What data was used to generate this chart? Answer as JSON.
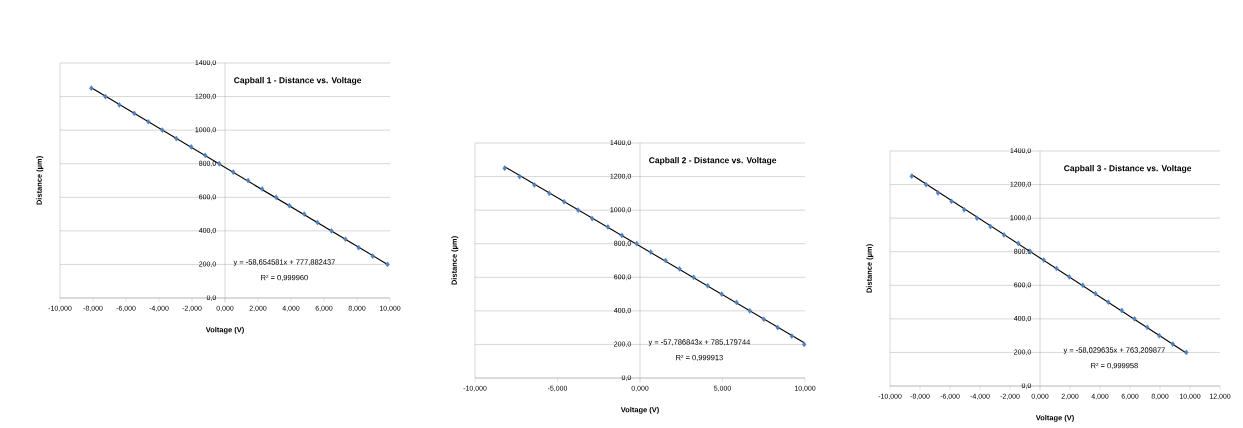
{
  "chart_data": [
    {
      "type": "scatter",
      "title": "Capball 1 - Distance vs. Voltage",
      "xlabel": "Voltage (V)",
      "ylabel": "Distance (µm)",
      "xlim": [
        -10,
        10
      ],
      "ylim": [
        0,
        1400
      ],
      "xticks": [
        {
          "value": -10,
          "label": "-10,000"
        },
        {
          "value": -8,
          "label": "-8,000"
        },
        {
          "value": -6,
          "label": "-6,000"
        },
        {
          "value": -4,
          "label": "-4,000"
        },
        {
          "value": -2,
          "label": "-2,000"
        },
        {
          "value": 0,
          "label": "0,000"
        },
        {
          "value": 2,
          "label": "2,000"
        },
        {
          "value": 4,
          "label": "4,000"
        },
        {
          "value": 6,
          "label": "6,000"
        },
        {
          "value": 8,
          "label": "8,000"
        },
        {
          "value": 10,
          "label": "10,000"
        }
      ],
      "yticks": [
        {
          "value": 0,
          "label": "0,0"
        },
        {
          "value": 200,
          "label": "200,0"
        },
        {
          "value": 400,
          "label": "400,0"
        },
        {
          "value": 600,
          "label": "600,0"
        },
        {
          "value": 800,
          "label": "800,0"
        },
        {
          "value": 1000,
          "label": "1000,0"
        },
        {
          "value": 1200,
          "label": "1200,0"
        },
        {
          "value": 1400,
          "label": "1400,0"
        }
      ],
      "grid": "y",
      "marker": "diamond",
      "series": [
        {
          "color": "#4f81bd",
          "x": [
            -8.1,
            -7.25,
            -6.4,
            -5.5,
            -4.65,
            -3.8,
            -2.95,
            -2.05,
            -1.2,
            -0.35,
            0.5,
            1.4,
            2.25,
            3.1,
            3.9,
            4.8,
            5.6,
            6.45,
            7.3,
            8.1,
            8.95,
            9.85
          ],
          "values": [
            1250,
            1200,
            1150,
            1100,
            1050,
            1000,
            950,
            900,
            850,
            800,
            750,
            700,
            650,
            600,
            550,
            500,
            450,
            400,
            350,
            300,
            250,
            200
          ]
        },
        {
          "type": "line",
          "color": "#000000",
          "marker": "none",
          "x": [
            -8.1,
            9.85
          ],
          "values": [
            1253,
            200
          ]
        }
      ],
      "annotations": [
        "y = -58,654581x + 777,882437",
        "R² = 0,999960"
      ]
    },
    {
      "type": "scatter",
      "title": "Capball 2 - Distance vs. Voltage",
      "xlabel": "Voltage (V)",
      "ylabel": "Distance (µm)",
      "xlim": [
        -10,
        10
      ],
      "ylim": [
        0,
        1400
      ],
      "xticks": [
        {
          "value": -10,
          "label": "-10,000"
        },
        {
          "value": -5,
          "label": "-5,000"
        },
        {
          "value": 0,
          "label": "0,000"
        },
        {
          "value": 5,
          "label": "5,000"
        },
        {
          "value": 10,
          "label": "10,000"
        }
      ],
      "yticks": [
        {
          "value": 0,
          "label": "0,0"
        },
        {
          "value": 200,
          "label": "200,0"
        },
        {
          "value": 400,
          "label": "400,0"
        },
        {
          "value": 600,
          "label": "600,0"
        },
        {
          "value": 800,
          "label": "800,0"
        },
        {
          "value": 1000,
          "label": "1000,0"
        },
        {
          "value": 1200,
          "label": "1200,0"
        },
        {
          "value": 1400,
          "label": "1400,0"
        }
      ],
      "grid": "y",
      "marker": "diamond",
      "series": [
        {
          "color": "#4f81bd",
          "x": [
            -8.2,
            -7.3,
            -6.4,
            -5.5,
            -4.6,
            -3.75,
            -2.9,
            -1.95,
            -1.1,
            -0.2,
            0.65,
            1.55,
            2.4,
            3.25,
            4.1,
            4.95,
            5.85,
            6.65,
            7.5,
            8.35,
            9.2,
            9.95
          ],
          "values": [
            1250,
            1200,
            1150,
            1100,
            1050,
            1000,
            950,
            900,
            850,
            800,
            750,
            700,
            650,
            600,
            550,
            500,
            450,
            400,
            350,
            300,
            250,
            200
          ]
        },
        {
          "type": "line",
          "color": "#000000",
          "marker": "none",
          "x": [
            -8.2,
            9.95
          ],
          "values": [
            1259,
            210
          ]
        }
      ],
      "annotations": [
        "y = -57,786843x + 785,179744",
        "R² = 0,999913"
      ]
    },
    {
      "type": "scatter",
      "title": "Capball 3 - Distance vs. Voltage",
      "xlabel": "Voltage (V)",
      "ylabel": "Distance (µm)",
      "xlim": [
        -10,
        12
      ],
      "ylim": [
        0,
        1400
      ],
      "xticks": [
        {
          "value": -10,
          "label": "-10,000"
        },
        {
          "value": -8,
          "label": "-8,000"
        },
        {
          "value": -6,
          "label": "-6,000"
        },
        {
          "value": -4,
          "label": "-4,000"
        },
        {
          "value": -2,
          "label": "-2,000"
        },
        {
          "value": 0,
          "label": "0,000"
        },
        {
          "value": 2,
          "label": "2,000"
        },
        {
          "value": 4,
          "label": "4,000"
        },
        {
          "value": 6,
          "label": "6,000"
        },
        {
          "value": 8,
          "label": "8,000"
        },
        {
          "value": 10,
          "label": "10,000"
        },
        {
          "value": 12,
          "label": "12,000"
        }
      ],
      "yticks": [
        {
          "value": 0,
          "label": "0,0"
        },
        {
          "value": 200,
          "label": "200,0"
        },
        {
          "value": 400,
          "label": "400,0"
        },
        {
          "value": 600,
          "label": "600,0"
        },
        {
          "value": 800,
          "label": "800,0"
        },
        {
          "value": 1000,
          "label": "1000,0"
        },
        {
          "value": 1200,
          "label": "1200,0"
        },
        {
          "value": 1400,
          "label": "1400,0"
        }
      ],
      "grid": "y",
      "marker": "diamond",
      "series": [
        {
          "color": "#4f81bd",
          "x": [
            -8.55,
            -7.6,
            -6.8,
            -5.9,
            -5.05,
            -4.2,
            -3.3,
            -2.4,
            -1.45,
            -0.65,
            0.25,
            1.1,
            1.95,
            2.85,
            3.7,
            4.55,
            5.45,
            6.3,
            7.15,
            7.95,
            8.85,
            9.75
          ],
          "values": [
            1250,
            1200,
            1150,
            1100,
            1050,
            1000,
            950,
            900,
            850,
            800,
            750,
            700,
            650,
            600,
            550,
            500,
            450,
            400,
            350,
            300,
            250,
            200
          ]
        },
        {
          "type": "line",
          "color": "#000000",
          "marker": "none",
          "x": [
            -8.55,
            9.75
          ],
          "values": [
            1259,
            197
          ]
        }
      ],
      "annotations": [
        "y = -58,029635x + 763,209877",
        "R² = 0,999958"
      ]
    }
  ]
}
